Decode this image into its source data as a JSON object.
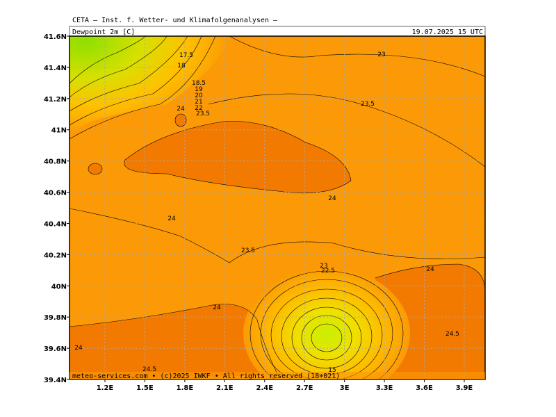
{
  "header": {
    "institute": "CETA — Inst. f. Wetter- und Klimafolgenanalysen —",
    "title": "Dewpoint 2m [C]",
    "valid_time": "19.07.2025 15 UTC"
  },
  "map": {
    "lat_labels": [
      "41.6N",
      "41.4N",
      "41.2N",
      "41N",
      "40.8N",
      "40.6N",
      "40.4N",
      "40.2N",
      "40N",
      "39.8N",
      "39.6N",
      "39.4N"
    ],
    "lon_labels": [
      "1.2E",
      "1.5E",
      "1.8E",
      "2.1E",
      "2.4E",
      "2.7E",
      "3E",
      "3.3E",
      "3.6E",
      "3.9E"
    ],
    "contour_labels": [
      "17.5",
      "18",
      "18.5",
      "19",
      "20",
      "21",
      "22",
      "24",
      "23.5",
      "23",
      "23.5",
      "24",
      "24",
      "23.5",
      "23",
      "22.5",
      "24",
      "24",
      "24",
      "24.5",
      "24.5",
      "15"
    ]
  },
  "footer": {
    "copyright": "meteo-services.com • (c)2025 IWKF • All rights reserved (18+021)"
  }
}
